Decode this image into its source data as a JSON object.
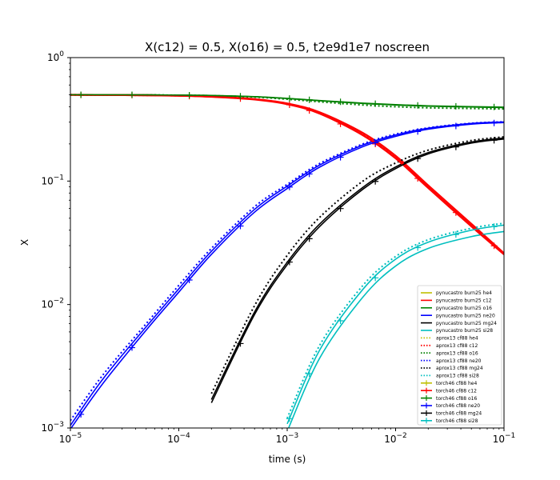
{
  "chart_data": {
    "type": "line",
    "title": "X(c12) = 0.5, X(o16) = 0.5, t2e9d1e7 noscreen",
    "xlabel": "time (s)",
    "ylabel": "X",
    "xscale": "log",
    "yscale": "log",
    "xlim": [
      1e-05,
      0.1
    ],
    "ylim": [
      0.001,
      1
    ],
    "grid": false,
    "legend_position": "lower right",
    "xticks": [
      {
        "value": 1e-05,
        "base": "10",
        "exp": "−5"
      },
      {
        "value": 0.0001,
        "base": "10",
        "exp": "−4"
      },
      {
        "value": 0.001,
        "base": "10",
        "exp": "−3"
      },
      {
        "value": 0.01,
        "base": "10",
        "exp": "−2"
      },
      {
        "value": 0.1,
        "base": "10",
        "exp": "−1"
      }
    ],
    "yticks": [
      {
        "value": 0.001,
        "base": "10",
        "exp": "−3"
      },
      {
        "value": 0.01,
        "base": "10",
        "exp": "−2"
      },
      {
        "value": 0.1,
        "base": "10",
        "exp": "−1"
      },
      {
        "value": 1,
        "base": "10",
        "exp": "0"
      }
    ],
    "colors": {
      "he4": "#bfbf00",
      "c12": "#ff0000",
      "o16": "#008000",
      "ne20": "#0000ff",
      "mg24": "#000000",
      "si28": "#00bfbf"
    },
    "x": [
      1e-05,
      2e-05,
      5e-05,
      0.0001,
      0.0002,
      0.0005,
      0.001,
      0.002,
      0.005,
      0.01,
      0.02,
      0.05,
      0.1
    ],
    "series": [
      {
        "name": "pynucastro burn25 he4",
        "group": "pyna",
        "species": "he4",
        "style": "solid",
        "values": [
          null,
          null,
          null,
          null,
          null,
          null,
          null,
          null,
          null,
          null,
          null,
          null,
          null
        ]
      },
      {
        "name": "pynucastro burn25 c12",
        "group": "pyna",
        "species": "c12",
        "style": "solid",
        "values": [
          0.499,
          0.498,
          0.496,
          0.492,
          0.484,
          0.461,
          0.425,
          0.36,
          0.245,
          0.16,
          0.092,
          0.045,
          0.026
        ]
      },
      {
        "name": "pynucastro burn25 o16",
        "group": "pyna",
        "species": "o16",
        "style": "solid",
        "values": [
          0.5,
          0.5,
          0.499,
          0.497,
          0.493,
          0.482,
          0.466,
          0.447,
          0.425,
          0.413,
          0.404,
          0.398,
          0.394
        ]
      },
      {
        "name": "pynucastro burn25 ne20",
        "group": "pyna",
        "species": "ne20",
        "style": "solid",
        "values": [
          0.00105,
          0.0025,
          0.0066,
          0.0134,
          0.027,
          0.059,
          0.091,
          0.135,
          0.196,
          0.236,
          0.268,
          0.293,
          0.301
        ]
      },
      {
        "name": "pynucastro burn25 mg24",
        "group": "pyna",
        "species": "mg24",
        "style": "solid",
        "values": [
          null,
          null,
          null,
          null,
          0.0017,
          0.0087,
          0.022,
          0.045,
          0.089,
          0.13,
          0.17,
          0.207,
          0.223
        ]
      },
      {
        "name": "pynucastro burn25 si28",
        "group": "pyna",
        "species": "si28",
        "style": "solid",
        "values": [
          null,
          null,
          null,
          null,
          null,
          null,
          0.00094,
          0.0037,
          0.0115,
          0.0205,
          0.0285,
          0.0355,
          0.039
        ]
      },
      {
        "name": "aprox13 cf88 he4",
        "group": "aprox",
        "species": "he4",
        "style": "dotted",
        "values": [
          null,
          null,
          null,
          null,
          null,
          null,
          null,
          null,
          null,
          null,
          null,
          null,
          null
        ]
      },
      {
        "name": "aprox13 cf88 c12",
        "group": "aprox",
        "species": "c12",
        "style": "dotted",
        "values": [
          0.499,
          0.498,
          0.496,
          0.492,
          0.484,
          0.46,
          0.423,
          0.356,
          0.24,
          0.157,
          0.09,
          0.044,
          0.026
        ]
      },
      {
        "name": "aprox13 cf88 o16",
        "group": "aprox",
        "species": "o16",
        "style": "dotted",
        "values": [
          0.5,
          0.5,
          0.499,
          0.496,
          0.492,
          0.479,
          0.46,
          0.438,
          0.413,
          0.4,
          0.392,
          0.387,
          0.384
        ]
      },
      {
        "name": "aprox13 cf88 ne20",
        "group": "aprox",
        "species": "ne20",
        "style": "dotted",
        "values": [
          0.00115,
          0.0027,
          0.007,
          0.0143,
          0.0285,
          0.062,
          0.094,
          0.139,
          0.2,
          0.24,
          0.27,
          0.294,
          0.302
        ]
      },
      {
        "name": "aprox13 cf88 mg24",
        "group": "aprox",
        "species": "mg24",
        "style": "dotted",
        "values": [
          null,
          null,
          null,
          null,
          0.0019,
          0.0098,
          0.025,
          0.051,
          0.1,
          0.14,
          0.178,
          0.213,
          0.228
        ]
      },
      {
        "name": "aprox13 cf88 si28",
        "group": "aprox",
        "species": "si28",
        "style": "dotted",
        "values": [
          null,
          null,
          null,
          null,
          null,
          null,
          0.0012,
          0.0047,
          0.0143,
          0.0245,
          0.0335,
          0.0415,
          0.0455
        ]
      },
      {
        "name": "torch46 cf88 he4",
        "group": "torch",
        "species": "he4",
        "style": "plus",
        "values": [
          null,
          null,
          null,
          null,
          null,
          null,
          null,
          null,
          null,
          null,
          null,
          null,
          null
        ]
      },
      {
        "name": "torch46 cf88 c12",
        "group": "torch",
        "species": "c12",
        "style": "plus",
        "values": [
          0.499,
          0.498,
          0.496,
          0.491,
          0.482,
          0.458,
          0.42,
          0.352,
          0.235,
          0.153,
          0.088,
          0.043,
          0.0255
        ]
      },
      {
        "name": "torch46 cf88 o16",
        "group": "torch",
        "species": "o16",
        "style": "plus",
        "values": [
          0.5,
          0.5,
          0.499,
          0.497,
          0.494,
          0.483,
          0.468,
          0.449,
          0.428,
          0.416,
          0.407,
          0.401,
          0.397
        ]
      },
      {
        "name": "torch46 cf88 ne20",
        "group": "torch",
        "species": "ne20",
        "style": "plus",
        "values": [
          0.00098,
          0.0023,
          0.0062,
          0.0126,
          0.0255,
          0.056,
          0.087,
          0.13,
          0.19,
          0.23,
          0.263,
          0.289,
          0.298
        ]
      },
      {
        "name": "torch46 cf88 mg24",
        "group": "torch",
        "species": "mg24",
        "style": "plus",
        "values": [
          null,
          null,
          null,
          null,
          0.0016,
          0.0083,
          0.021,
          0.043,
          0.086,
          0.126,
          0.166,
          0.203,
          0.219
        ]
      },
      {
        "name": "torch46 cf88 si28",
        "group": "torch",
        "species": "si28",
        "style": "plus",
        "values": [
          null,
          null,
          null,
          null,
          null,
          null,
          0.00108,
          0.0043,
          0.0133,
          0.0233,
          0.032,
          0.04,
          0.044
        ]
      }
    ]
  }
}
